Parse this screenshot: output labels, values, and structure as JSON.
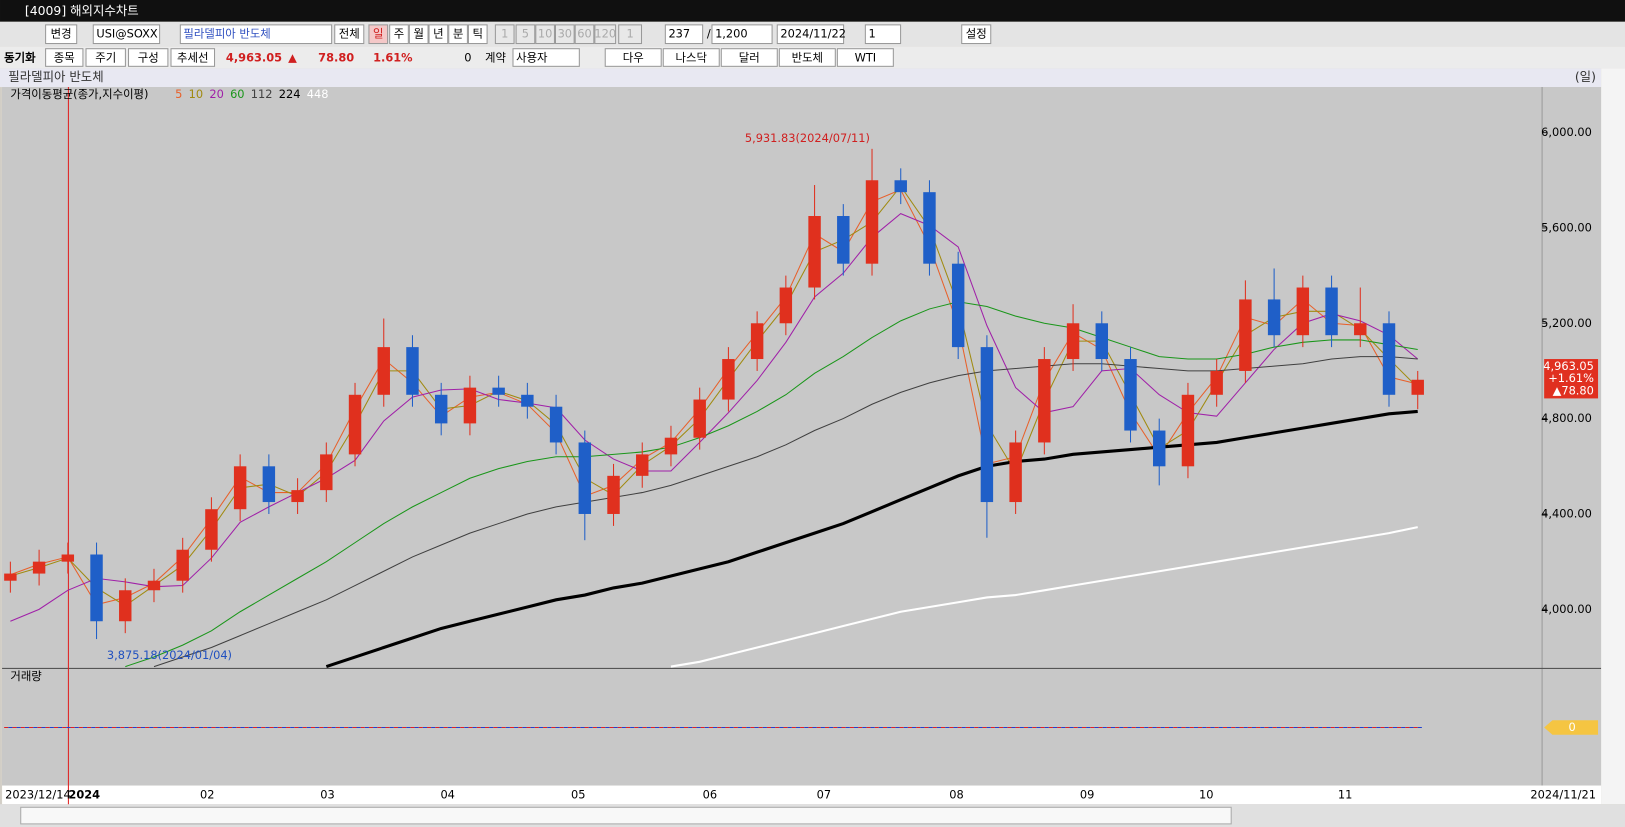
{
  "ui": {
    "window_title": "[4009] 해외지수차트",
    "toolbar1": [
      "변경",
      "USI@SOXX",
      "필라델피아 반도체",
      "전체",
      "일",
      "주",
      "월",
      "년",
      "분",
      "틱",
      "1",
      "5",
      "10",
      "30",
      "60",
      "120",
      "1",
      "237",
      "/",
      "1,200",
      "2024/11/22",
      "1",
      "설정"
    ],
    "toolbar2": [
      "동기화",
      "종목",
      "주기",
      "구성",
      "추세선",
      "4,963.05",
      "▲",
      "78.80",
      "1.61%",
      "0",
      "계약",
      "사용자",
      "다우",
      "나스닥",
      "달러",
      "반도체",
      "WTI"
    ],
    "chart_title": "필라델피아 반도체",
    "period": "(일)",
    "indicator_label": "가격이동평균(종가,지수이평)",
    "volume_label": "거래량",
    "volume_value": "0",
    "price_badge": [
      "4,963.05",
      "+1.61%",
      "▲78.80"
    ]
  },
  "chart_data": {
    "type": "candlestick",
    "x_labels": [
      "2023/12/14",
      "2024",
      "02",
      "03",
      "04",
      "05",
      "06",
      "07",
      "08",
      "09",
      "10",
      "11",
      "2024/11/21"
    ],
    "open": [
      4120,
      4150,
      4200,
      4230,
      3950,
      4080,
      4120,
      4250,
      4420,
      4600,
      4450,
      4500,
      4650,
      4900,
      5100,
      4900,
      4780,
      4930,
      4900,
      4850,
      4700,
      4400,
      4560,
      4650,
      4720,
      4880,
      5050,
      5200,
      5350,
      5650,
      5450,
      5800,
      5750,
      5450,
      5100,
      4450,
      4700,
      5050,
      5200,
      5050,
      4750,
      4600,
      4900,
      5000,
      5300,
      5150,
      5350,
      5150,
      5200,
      4900
    ],
    "high": [
      4200,
      4250,
      4280,
      4280,
      4130,
      4170,
      4300,
      4470,
      4650,
      4650,
      4550,
      4700,
      4950,
      5220,
      5150,
      4950,
      4980,
      4980,
      4950,
      4900,
      4750,
      4610,
      4700,
      4770,
      4930,
      5100,
      5250,
      5400,
      5780,
      5700,
      5931.83,
      5850,
      5800,
      5500,
      5150,
      4750,
      5100,
      5280,
      5250,
      5100,
      4800,
      4950,
      5050,
      5380,
      5430,
      5400,
      5400,
      5350,
      5250,
      5000
    ],
    "low": [
      4070,
      4100,
      4150,
      3875.18,
      3900,
      4030,
      4070,
      4200,
      4370,
      4400,
      4400,
      4450,
      4600,
      4850,
      4850,
      4730,
      4730,
      4850,
      4800,
      4650,
      4290,
      4350,
      4510,
      4600,
      4670,
      4830,
      5000,
      5150,
      5300,
      5400,
      5400,
      5700,
      5400,
      5050,
      4300,
      4400,
      4650,
      5000,
      5000,
      4700,
      4520,
      4550,
      4850,
      4950,
      5100,
      5100,
      5100,
      5100,
      4850,
      4840
    ],
    "close": [
      4150,
      4200,
      4230,
      3950,
      4080,
      4120,
      4250,
      4420,
      4600,
      4450,
      4500,
      4650,
      4900,
      5100,
      4900,
      4780,
      4930,
      4900,
      4850,
      4700,
      4400,
      4560,
      4650,
      4720,
      4880,
      5050,
      5200,
      5350,
      5650,
      5450,
      5800,
      5750,
      5450,
      5100,
      4450,
      4700,
      5050,
      5200,
      5050,
      4750,
      4600,
      4900,
      5000,
      5300,
      5150,
      5350,
      5150,
      5200,
      4900,
      4963.05
    ],
    "up_color": "#e0301e",
    "down_color": "#1f5fc8",
    "series": [
      {
        "name": "5",
        "color": "#e8602a",
        "width": 1,
        "values": [
          4145,
          4190,
          4220,
          4020,
          4050,
          4110,
          4220,
          4380,
          4555,
          4490,
          4490,
          4610,
          4840,
          5050,
          4950,
          4810,
          4890,
          4910,
          4860,
          4740,
          4475,
          4520,
          4630,
          4700,
          4840,
          5010,
          5160,
          5310,
          5575,
          5500,
          5710,
          5760,
          5525,
          5190,
          4610,
          4640,
          4960,
          5160,
          5090,
          4825,
          4640,
          4825,
          4975,
          5225,
          5190,
          5300,
          5200,
          5190,
          4975,
          4945
        ]
      },
      {
        "name": "10",
        "color": "#a08a10",
        "width": 1,
        "values": [
          4140,
          4175,
          4215,
          4090,
          4015,
          4100,
          4185,
          4335,
          4510,
          4525,
          4475,
          4575,
          4775,
          5000,
          5000,
          4840,
          4855,
          4915,
          4875,
          4775,
          4550,
          4480,
          4605,
          4685,
          4800,
          4965,
          5125,
          5275,
          5500,
          5550,
          5625,
          5775,
          5600,
          5275,
          4775,
          4575,
          4875,
          5125,
          5125,
          4900,
          4675,
          4750,
          4950,
          5150,
          5225,
          5250,
          5250,
          5175,
          5050,
          4930
        ]
      },
      {
        "name": "20",
        "color": "#a020a8",
        "width": 1,
        "values": [
          3950,
          4000,
          4080,
          4130,
          4115,
          4095,
          4100,
          4215,
          4365,
          4430,
          4490,
          4550,
          4625,
          4790,
          4890,
          4920,
          4925,
          4880,
          4865,
          4845,
          4710,
          4630,
          4580,
          4580,
          4700,
          4825,
          4960,
          5120,
          5310,
          5410,
          5560,
          5660,
          5610,
          5520,
          5190,
          4930,
          4825,
          4850,
          5000,
          5010,
          4900,
          4825,
          4810,
          4950,
          5090,
          5200,
          5240,
          5210,
          5150,
          5050
        ]
      },
      {
        "name": "60",
        "color": "#1a961a",
        "width": 1,
        "values": [
          null,
          null,
          null,
          null,
          3760,
          3800,
          3850,
          3910,
          3990,
          4060,
          4130,
          4200,
          4280,
          4360,
          4430,
          4490,
          4550,
          4590,
          4620,
          4640,
          4640,
          4650,
          4660,
          4680,
          4720,
          4770,
          4830,
          4900,
          4990,
          5060,
          5140,
          5210,
          5260,
          5290,
          5270,
          5230,
          5200,
          5180,
          5140,
          5100,
          5060,
          5050,
          5050,
          5070,
          5100,
          5120,
          5130,
          5130,
          5110,
          5090
        ]
      },
      {
        "name": "112",
        "color": "#404040",
        "width": 1,
        "values": [
          null,
          null,
          null,
          null,
          null,
          3760,
          3800,
          3840,
          3890,
          3940,
          3990,
          4040,
          4100,
          4160,
          4220,
          4270,
          4320,
          4360,
          4400,
          4430,
          4450,
          4470,
          4490,
          4520,
          4560,
          4600,
          4640,
          4690,
          4750,
          4800,
          4860,
          4910,
          4950,
          4980,
          5000,
          5010,
          5020,
          5030,
          5030,
          5020,
          5010,
          5000,
          5000,
          5010,
          5020,
          5030,
          5050,
          5060,
          5060,
          5050
        ]
      },
      {
        "name": "224",
        "color": "#000000",
        "width": 3,
        "values": [
          null,
          null,
          null,
          null,
          null,
          null,
          null,
          null,
          null,
          null,
          null,
          3760,
          3800,
          3840,
          3880,
          3920,
          3950,
          3980,
          4010,
          4040,
          4060,
          4090,
          4110,
          4140,
          4170,
          4200,
          4240,
          4280,
          4320,
          4360,
          4410,
          4460,
          4510,
          4560,
          4600,
          4620,
          4630,
          4650,
          4660,
          4670,
          4680,
          4690,
          4700,
          4720,
          4740,
          4760,
          4780,
          4800,
          4820,
          4830
        ]
      },
      {
        "name": "448",
        "color": "#ffffff",
        "width": 2,
        "values": [
          null,
          null,
          null,
          null,
          null,
          null,
          null,
          null,
          null,
          null,
          null,
          null,
          null,
          null,
          null,
          null,
          null,
          null,
          null,
          null,
          null,
          null,
          null,
          3760,
          3780,
          3810,
          3840,
          3870,
          3900,
          3930,
          3960,
          3990,
          4010,
          4030,
          4050,
          4060,
          4080,
          4100,
          4120,
          4140,
          4160,
          4180,
          4200,
          4220,
          4240,
          4260,
          4280,
          4300,
          4320,
          4345
        ]
      }
    ],
    "ylim": [
      3752,
      6191
    ],
    "yticks": [
      {
        "value": 4000,
        "label": "4,000.00"
      },
      {
        "value": 4400,
        "label": "4,400.00"
      },
      {
        "value": 4800,
        "label": "4,800.00"
      },
      {
        "value": 5200,
        "label": "5,200.00"
      },
      {
        "value": 5600,
        "label": "5,600.00"
      },
      {
        "value": 6000,
        "label": "6,000.00"
      }
    ],
    "high_label": "5,931.83(2024/07/11)",
    "low_label": "3,875.18(2024/01/04)"
  }
}
